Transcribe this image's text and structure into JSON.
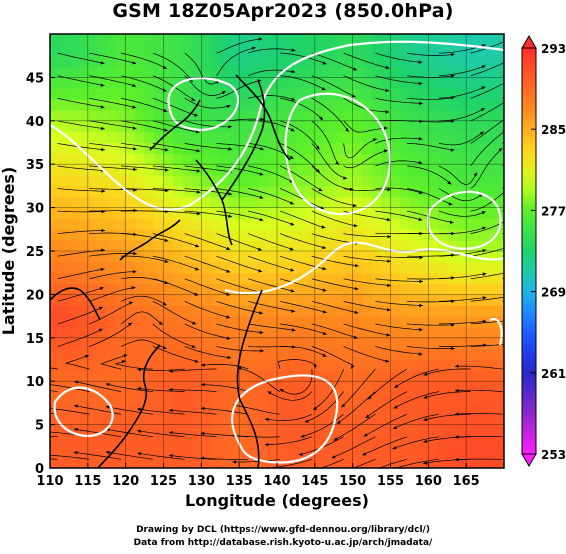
{
  "title": "GSM 18Z05Apr2023 (850.0hPa)",
  "axes": {
    "xlabel": "Longitude (degrees)",
    "ylabel": "Latitude  (degrees)",
    "xticks": [
      "110",
      "115",
      "120",
      "125",
      "130",
      "135",
      "140",
      "145",
      "150",
      "155",
      "160",
      "165"
    ],
    "yticks": [
      "0",
      "5",
      "10",
      "15",
      "20",
      "25",
      "30",
      "35",
      "40",
      "45"
    ]
  },
  "colorbar": {
    "labels": [
      "293",
      "285",
      "277",
      "269",
      "261",
      "253"
    ],
    "gradient": [
      "#ff2d2d",
      "#ff8a1e",
      "#ffd21e",
      "#d8ff1e",
      "#5cf02a",
      "#1ed26a",
      "#1ec8c8",
      "#1ea0ff",
      "#1e46ff",
      "#2828c8",
      "#8c28c8",
      "#ff1eff"
    ]
  },
  "credits": {
    "line1": "Drawing by DCL (https://www.gfd-dennou.org/library/dcl/)",
    "line2": "Data from http://database.rish.kyoto-u.ac.jp/arch/jmadata/"
  },
  "chart_data": {
    "type": "heatmap",
    "title": "GSM 18Z05Apr2023 (850.0hPa)",
    "xlabel": "Longitude (degrees)",
    "ylabel": "Latitude  (degrees)",
    "xlim": [
      110,
      170
    ],
    "ylim": [
      0,
      50
    ],
    "grid": true,
    "colorbar_range": [
      253,
      293
    ],
    "colorbar_ticks": [
      253,
      261,
      269,
      277,
      285,
      293
    ],
    "overlay": "wind streamlines with white temperature contours",
    "rows": [
      {
        "lat": 47.5,
        "values_by_lon": [
          {
            "lon": 112.5,
            "v": 274
          },
          {
            "lon": 120,
            "v": 276
          },
          {
            "lon": 127.5,
            "v": 275
          },
          {
            "lon": 135,
            "v": 272
          },
          {
            "lon": 142.5,
            "v": 273
          },
          {
            "lon": 150,
            "v": 274
          },
          {
            "lon": 157.5,
            "v": 272
          },
          {
            "lon": 165,
            "v": 271
          }
        ]
      },
      {
        "lat": 40,
        "values_by_lon": [
          {
            "lon": 112.5,
            "v": 279
          },
          {
            "lon": 120,
            "v": 278
          },
          {
            "lon": 127.5,
            "v": 275
          },
          {
            "lon": 135,
            "v": 275
          },
          {
            "lon": 142.5,
            "v": 276
          },
          {
            "lon": 150,
            "v": 277
          },
          {
            "lon": 157.5,
            "v": 275
          },
          {
            "lon": 165,
            "v": 274
          }
        ]
      },
      {
        "lat": 32.5,
        "values_by_lon": [
          {
            "lon": 112.5,
            "v": 283
          },
          {
            "lon": 120,
            "v": 282
          },
          {
            "lon": 127.5,
            "v": 279
          },
          {
            "lon": 135,
            "v": 277
          },
          {
            "lon": 142.5,
            "v": 278
          },
          {
            "lon": 150,
            "v": 279
          },
          {
            "lon": 157.5,
            "v": 277
          },
          {
            "lon": 165,
            "v": 276
          }
        ]
      },
      {
        "lat": 25,
        "values_by_lon": [
          {
            "lon": 112.5,
            "v": 287
          },
          {
            "lon": 120,
            "v": 286
          },
          {
            "lon": 127.5,
            "v": 284
          },
          {
            "lon": 135,
            "v": 282
          },
          {
            "lon": 142.5,
            "v": 282
          },
          {
            "lon": 150,
            "v": 283
          },
          {
            "lon": 157.5,
            "v": 281
          },
          {
            "lon": 165,
            "v": 279
          }
        ]
      },
      {
        "lat": 17.5,
        "values_by_lon": [
          {
            "lon": 112.5,
            "v": 291
          },
          {
            "lon": 120,
            "v": 289
          },
          {
            "lon": 127.5,
            "v": 288
          },
          {
            "lon": 135,
            "v": 287
          },
          {
            "lon": 142.5,
            "v": 287
          },
          {
            "lon": 150,
            "v": 287
          },
          {
            "lon": 157.5,
            "v": 286
          },
          {
            "lon": 165,
            "v": 286
          }
        ]
      },
      {
        "lat": 10,
        "values_by_lon": [
          {
            "lon": 112.5,
            "v": 289
          },
          {
            "lon": 120,
            "v": 289
          },
          {
            "lon": 127.5,
            "v": 290
          },
          {
            "lon": 135,
            "v": 289
          },
          {
            "lon": 142.5,
            "v": 290
          },
          {
            "lon": 150,
            "v": 289
          },
          {
            "lon": 157.5,
            "v": 290
          },
          {
            "lon": 165,
            "v": 290
          }
        ]
      },
      {
        "lat": 2.5,
        "values_by_lon": [
          {
            "lon": 112.5,
            "v": 290
          },
          {
            "lon": 120,
            "v": 290
          },
          {
            "lon": 127.5,
            "v": 290
          },
          {
            "lon": 135,
            "v": 289
          },
          {
            "lon": 142.5,
            "v": 290
          },
          {
            "lon": 150,
            "v": 290
          },
          {
            "lon": 157.5,
            "v": 290
          },
          {
            "lon": 165,
            "v": 291
          }
        ]
      }
    ]
  }
}
